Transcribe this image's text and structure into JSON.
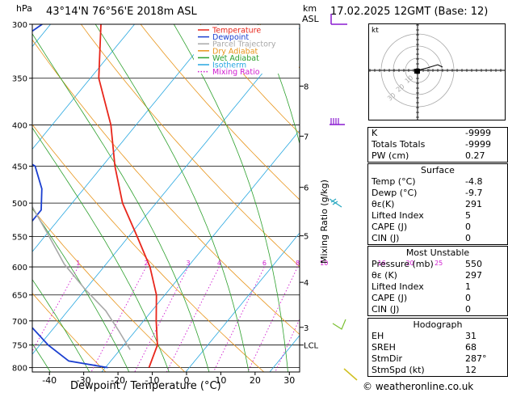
{
  "header": {
    "unit_hpa": "hPa",
    "location": "43°14'N  76°56'E  2018m  ASL",
    "unit_km": "km",
    "unit_asl": "ASL",
    "datetime": "17.02.2025  12GMT  (Base: 12)"
  },
  "chart_data": {
    "type": "line",
    "title": "",
    "xlabel": "Dewpoint / Temperature (°C)",
    "ylabel": "",
    "right_axis_label": "Mixing Ratio (g/kg)",
    "x_ticks": [
      -40,
      -30,
      -20,
      -10,
      0,
      10,
      20,
      30
    ],
    "x_tick_labels": [
      "-40",
      "-30",
      "-20",
      "-10",
      "0",
      "10",
      "20",
      "30"
    ],
    "pressure_ticks": [
      300,
      350,
      400,
      450,
      500,
      550,
      600,
      650,
      700,
      750,
      800
    ],
    "pressure_tick_labels": [
      "300",
      "350",
      "400",
      "450",
      "500",
      "550",
      "600",
      "650",
      "700",
      "750",
      "800"
    ],
    "ylim": [
      300,
      810
    ],
    "xlim": [
      -45,
      33
    ],
    "km_ticks": [
      {
        "label": "8",
        "p": 358
      },
      {
        "label": "7",
        "p": 413
      },
      {
        "label": "6",
        "p": 478
      },
      {
        "label": "5",
        "p": 549
      },
      {
        "label": "4",
        "p": 627
      },
      {
        "label": "3",
        "p": 713
      },
      {
        "label": "LCL",
        "p": 750
      }
    ],
    "mixing_ratio_labels": [
      "1",
      "2",
      "3",
      "4",
      "6",
      "8",
      "10",
      "16",
      "20",
      "25"
    ],
    "mixing_ratios": [
      1,
      2,
      3,
      4,
      6,
      8,
      10,
      16,
      20,
      25
    ],
    "legend": {
      "position": "top-right",
      "items": [
        {
          "name": "Temperature",
          "color": "#e8261b",
          "style": "solid"
        },
        {
          "name": "Dewpoint",
          "color": "#1b3fd0",
          "style": "solid"
        },
        {
          "name": "Parcel Trajectory",
          "color": "#a8a8a8",
          "style": "solid"
        },
        {
          "name": "Dry Adiabat",
          "color": "#e8951b",
          "style": "solid"
        },
        {
          "name": "Wet Adiabat",
          "color": "#2ca02c",
          "style": "solid"
        },
        {
          "name": "Isotherm",
          "color": "#27a7e0",
          "style": "solid"
        },
        {
          "name": "Mixing Ratio",
          "color": "#d01bd0",
          "style": "dotted"
        }
      ]
    },
    "series": [
      {
        "name": "Temperature",
        "color": "#e8261b",
        "points": [
          [
            -4.8,
            800
          ],
          [
            -6,
            750
          ],
          [
            -8.5,
            700
          ],
          [
            -11,
            650
          ],
          [
            -14.5,
            600
          ],
          [
            -19,
            550
          ],
          [
            -24,
            500
          ],
          [
            -28.5,
            450
          ],
          [
            -33,
            400
          ],
          [
            -39,
            350
          ],
          [
            -44,
            300
          ]
        ]
      },
      {
        "name": "Dewpoint",
        "color": "#1b3fd0",
        "points": [
          [
            -9.7,
            800
          ],
          [
            -15,
            785
          ],
          [
            -19,
            750
          ],
          [
            -24,
            700
          ],
          [
            -29,
            650
          ],
          [
            -32,
            600
          ],
          [
            -33,
            550
          ],
          [
            -33,
            510
          ],
          [
            -35,
            480
          ],
          [
            -38,
            450
          ],
          [
            -45,
            420
          ],
          [
            -50,
            400
          ],
          [
            -55,
            375
          ],
          [
            -55,
            350
          ],
          [
            -51,
            300
          ]
        ]
      },
      {
        "name": "Parcel Trajectory",
        "color": "#a8a8a8",
        "points": [
          [
            -8.8,
            760
          ],
          [
            -12,
            720
          ],
          [
            -15.5,
            680
          ],
          [
            -20,
            640
          ],
          [
            -25,
            595
          ],
          [
            -30,
            545
          ],
          [
            -35,
            500
          ],
          [
            -40,
            455
          ],
          [
            -46,
            410
          ],
          [
            -52,
            360
          ],
          [
            -57,
            320
          ]
        ]
      }
    ]
  },
  "hodograph": {
    "unit": "kt",
    "ring_labels": [
      "10",
      "20",
      "30"
    ]
  },
  "indices": {
    "rows": [
      {
        "label": "K",
        "value": "-9999"
      },
      {
        "label": "Totals Totals",
        "value": "-9999"
      },
      {
        "label": "PW (cm)",
        "value": "0.27"
      }
    ]
  },
  "surface": {
    "title": "Surface",
    "rows": [
      {
        "label": "Temp (°C)",
        "value": "-4.8"
      },
      {
        "label": "Dewp (°C)",
        "value": "-9.7"
      },
      {
        "label": "θε(K)",
        "value": "291"
      },
      {
        "label": "Lifted Index",
        "value": "5"
      },
      {
        "label": "CAPE (J)",
        "value": "0"
      },
      {
        "label": "CIN (J)",
        "value": "0"
      }
    ]
  },
  "most_unstable": {
    "title": "Most Unstable",
    "rows": [
      {
        "label": "Pressure (mb)",
        "value": "550"
      },
      {
        "label": "θε (K)",
        "value": "297"
      },
      {
        "label": "Lifted Index",
        "value": "1"
      },
      {
        "label": "CAPE (J)",
        "value": "0"
      },
      {
        "label": "CIN (J)",
        "value": "0"
      }
    ]
  },
  "hodograph_table": {
    "title": "Hodograph",
    "rows": [
      {
        "label": "EH",
        "value": "31"
      },
      {
        "label": "SREH",
        "value": "68"
      },
      {
        "label": "StmDir",
        "value": "287°"
      },
      {
        "label": "StmSpd (kt)",
        "value": "12"
      }
    ]
  },
  "footer": {
    "credit": "© weatheronline.co.uk"
  },
  "colors": {
    "temperature": "#e8261b",
    "dewpoint": "#1b3fd0",
    "parcel": "#a8a8a8",
    "dry_adiabat": "#e8951b",
    "wet_adiabat": "#2ca02c",
    "isotherm": "#27a7e0",
    "mixing_ratio": "#d01bd0",
    "wind_barb": "#8a1bd0"
  }
}
